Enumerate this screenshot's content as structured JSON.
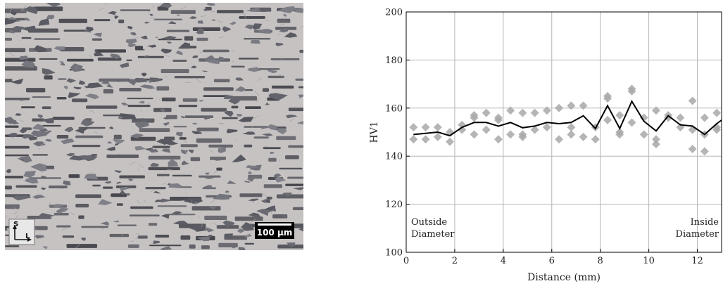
{
  "micrograph": {
    "scale_bar_label": "100 µm",
    "orientation": {
      "vertical": "S",
      "horizontal": "L"
    }
  },
  "chart_data": {
    "type": "scatter",
    "xlabel": "Distance (mm)",
    "ylabel": "HV1",
    "xlim": [
      0,
      13
    ],
    "ylim": [
      100,
      200
    ],
    "xticks": [
      0,
      2,
      4,
      6,
      8,
      10,
      12
    ],
    "yticks": [
      100,
      120,
      140,
      160,
      180,
      200
    ],
    "grid": true,
    "annotations": {
      "left": [
        "Outside",
        "Diameter"
      ],
      "right": [
        "Inside",
        "Diameter"
      ]
    },
    "series": [
      {
        "kind": "points",
        "marker": "diamond",
        "color": "#a8a8a8",
        "points": [
          [
            0.3,
            152
          ],
          [
            0.3,
            147
          ],
          [
            0.8,
            152
          ],
          [
            0.8,
            147
          ],
          [
            1.3,
            152
          ],
          [
            1.3,
            148
          ],
          [
            1.8,
            150
          ],
          [
            1.8,
            146
          ],
          [
            2.3,
            153
          ],
          [
            2.3,
            151
          ],
          [
            2.8,
            157
          ],
          [
            2.8,
            156
          ],
          [
            2.8,
            149
          ],
          [
            3.3,
            158
          ],
          [
            3.3,
            151
          ],
          [
            3.8,
            156
          ],
          [
            3.8,
            155
          ],
          [
            3.8,
            147
          ],
          [
            4.3,
            159
          ],
          [
            4.3,
            149
          ],
          [
            4.8,
            158
          ],
          [
            4.8,
            149
          ],
          [
            4.8,
            148
          ],
          [
            5.3,
            158
          ],
          [
            5.3,
            151
          ],
          [
            5.8,
            159
          ],
          [
            5.8,
            152
          ],
          [
            6.3,
            160
          ],
          [
            6.3,
            147
          ],
          [
            6.8,
            161
          ],
          [
            6.8,
            152
          ],
          [
            6.8,
            149
          ],
          [
            7.3,
            161
          ],
          [
            7.3,
            148
          ],
          [
            7.8,
            152
          ],
          [
            7.8,
            147
          ],
          [
            8.3,
            165
          ],
          [
            8.3,
            164
          ],
          [
            8.3,
            155
          ],
          [
            8.8,
            157
          ],
          [
            8.8,
            150
          ],
          [
            8.8,
            149
          ],
          [
            9.3,
            168
          ],
          [
            9.3,
            167
          ],
          [
            9.3,
            154
          ],
          [
            9.8,
            156
          ],
          [
            9.8,
            149
          ],
          [
            10.3,
            159
          ],
          [
            10.3,
            147
          ],
          [
            10.3,
            145
          ],
          [
            10.8,
            157
          ],
          [
            10.8,
            156
          ],
          [
            11.3,
            156
          ],
          [
            11.3,
            152
          ],
          [
            11.8,
            163
          ],
          [
            11.8,
            151
          ],
          [
            11.8,
            143
          ],
          [
            12.3,
            156
          ],
          [
            12.3,
            149
          ],
          [
            12.3,
            142
          ],
          [
            12.8,
            158
          ],
          [
            12.8,
            152
          ],
          [
            12.8,
            151
          ]
        ]
      },
      {
        "kind": "line",
        "color": "#000000",
        "x": [
          0.3,
          0.8,
          1.3,
          1.8,
          2.3,
          2.8,
          3.3,
          3.8,
          4.3,
          4.8,
          5.3,
          5.8,
          6.3,
          6.8,
          7.3,
          7.8,
          8.3,
          8.8,
          9.3,
          9.8,
          10.3,
          10.8,
          11.3,
          11.8,
          12.3,
          12.8,
          13.0
        ],
        "y": [
          149,
          149.5,
          150,
          148.5,
          152,
          154,
          154,
          152.5,
          154,
          151.8,
          152.5,
          154,
          153.5,
          154,
          156.8,
          151.5,
          161,
          151.5,
          162.8,
          154.5,
          150.5,
          156.8,
          153,
          152.5,
          149,
          153.5,
          155
        ]
      }
    ]
  }
}
